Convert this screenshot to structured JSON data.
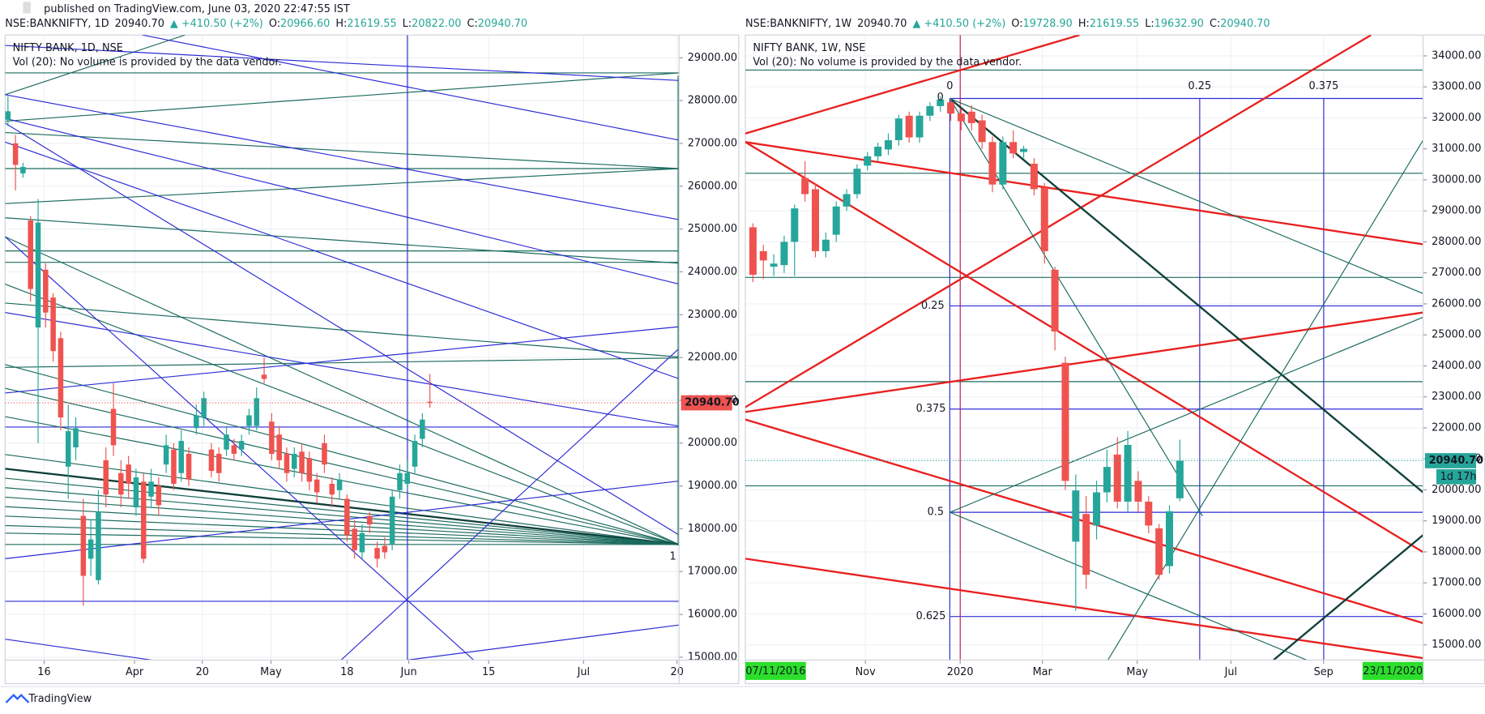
{
  "published": "published on TradingView.com, June 03, 2020 22:47:55 IST",
  "footer": "TradingView",
  "chart_data": [
    {
      "type": "candlestick",
      "header": [
        {
          "text": "NSE:BANKNIFTY, 1D",
          "color": "#131722"
        },
        {
          "text": "20940.70",
          "color": "#131722"
        },
        {
          "text": "▲ +410.50 (+2%)",
          "color": "#26a69a"
        },
        {
          "text": "O:",
          "color": "#131722"
        },
        {
          "text": "20966.60",
          "color": "#26a69a"
        },
        {
          "text": "H:",
          "color": "#131722"
        },
        {
          "text": "21619.55",
          "color": "#26a69a"
        },
        {
          "text": "L:",
          "color": "#131722"
        },
        {
          "text": "20822.00",
          "color": "#26a69a"
        },
        {
          "text": "C:",
          "color": "#131722"
        },
        {
          "text": "20940.70",
          "color": "#26a69a"
        }
      ],
      "title": "NIFTY BANK, 1D, NSE",
      "subtitle": "Vol (20): No volume is provided by the data vendor.",
      "up_color": "#26a69a",
      "down_color": "#ef5350",
      "open": [
        27550,
        27000,
        26300,
        25200,
        22700,
        24050,
        23400,
        22450,
        19450,
        19900,
        18300,
        17300,
        16800,
        19600,
        20800,
        19300,
        19500,
        18500,
        19100,
        18750,
        19000,
        19500,
        19850,
        19300,
        19750,
        20350,
        20600,
        19850,
        19750,
        19850,
        19950,
        19850,
        20400,
        20400,
        21600,
        20500,
        20200,
        19750,
        19400,
        19800,
        19650,
        19150,
        20000,
        19050,
        18900,
        18700,
        18000,
        17450,
        18300,
        17550,
        17600,
        17650,
        18900,
        19050,
        19450,
        20100,
        20966.6
      ],
      "high": [
        28100,
        27200,
        26550,
        25300,
        25700,
        24200,
        23500,
        22600,
        20900,
        20600,
        18700,
        18200,
        18900,
        19900,
        21400,
        19600,
        19700,
        19400,
        19300,
        19400,
        19200,
        20200,
        20000,
        20300,
        19900,
        20900,
        21200,
        20000,
        19900,
        20400,
        20100,
        20200,
        20800,
        21300,
        22000,
        20700,
        20400,
        19900,
        19900,
        20000,
        19800,
        19300,
        20200,
        19200,
        19300,
        18800,
        18200,
        18100,
        18400,
        17700,
        17800,
        18900,
        19500,
        19600,
        20200,
        20700,
        21619.55
      ],
      "low": [
        27400,
        25900,
        26200,
        23300,
        20000,
        22700,
        21900,
        20300,
        18700,
        19600,
        16200,
        16900,
        16700,
        18500,
        19700,
        18500,
        18700,
        18300,
        17200,
        18500,
        18300,
        19300,
        18900,
        19100,
        19000,
        20200,
        20400,
        19200,
        19100,
        19700,
        19600,
        19700,
        20200,
        20300,
        21400,
        19600,
        19400,
        19100,
        19200,
        19100,
        18900,
        18600,
        19300,
        18500,
        18700,
        17700,
        17300,
        17300,
        17900,
        17100,
        17300,
        17500,
        18700,
        18900,
        19300,
        19900,
        20822
      ],
      "close": [
        27750,
        26500,
        26450,
        23600,
        25150,
        23050,
        22150,
        20600,
        20280,
        20350,
        16900,
        17750,
        18400,
        18800,
        19950,
        18800,
        19050,
        19200,
        17300,
        19100,
        18550,
        19950,
        19050,
        20050,
        19150,
        20650,
        21050,
        19350,
        19300,
        20200,
        19750,
        20050,
        20650,
        21050,
        21500,
        19750,
        19600,
        19300,
        19750,
        19300,
        19100,
        18850,
        19500,
        18800,
        19150,
        17850,
        17500,
        17900,
        18100,
        17300,
        17450,
        18750,
        19300,
        19300,
        20050,
        20550,
        20940.7
      ],
      "xlim": [
        -0.38,
        89.07
      ],
      "xticks": [
        {
          "value": 4.8,
          "label": "16"
        },
        {
          "value": 16.8,
          "label": "Apr"
        },
        {
          "value": 25.8,
          "label": "20"
        },
        {
          "value": 34.9,
          "label": "May"
        },
        {
          "value": 45.0,
          "label": "18"
        },
        {
          "value": 53.2,
          "label": "Jun"
        },
        {
          "value": 63.8,
          "label": "15"
        },
        {
          "value": 76.4,
          "label": "Jul"
        },
        {
          "value": 88.8,
          "label": "20"
        }
      ],
      "ylim": [
        14934,
        29531
      ],
      "yticks": [
        {
          "value": 15000,
          "label": "15000.00"
        },
        {
          "value": 16000,
          "label": "16000.00"
        },
        {
          "value": 17000,
          "label": "17000.00"
        },
        {
          "value": 18000,
          "label": "18000.00"
        },
        {
          "value": 19000,
          "label": "19000.00"
        },
        {
          "value": 20000,
          "label": "20000.00"
        },
        {
          "value": 21000,
          "label": "21000.00"
        },
        {
          "value": 22000,
          "label": "22000.00"
        },
        {
          "value": 23000,
          "label": "23000.00"
        },
        {
          "value": 24000,
          "label": "24000.00"
        },
        {
          "value": 25000,
          "label": "25000.00"
        },
        {
          "value": 26000,
          "label": "26000.00"
        },
        {
          "value": 27000,
          "label": "27000.00"
        },
        {
          "value": 28000,
          "label": "28000.00"
        },
        {
          "value": 29000,
          "label": "29000.00"
        }
      ],
      "grid": true,
      "price_tag": "20940.70",
      "price_tag_color": "#ef5350",
      "marker_label": "1"
    },
    {
      "type": "candlestick",
      "header": [
        {
          "text": "NSE:BANKNIFTY, 1W",
          "color": "#131722"
        },
        {
          "text": "20940.70",
          "color": "#131722"
        },
        {
          "text": "▲ +410.50 (+2%)",
          "color": "#26a69a"
        },
        {
          "text": "O:",
          "color": "#131722"
        },
        {
          "text": "19728.90",
          "color": "#26a69a"
        },
        {
          "text": "H:",
          "color": "#131722"
        },
        {
          "text": "21619.55",
          "color": "#26a69a"
        },
        {
          "text": "L:",
          "color": "#131722"
        },
        {
          "text": "19632.90",
          "color": "#26a69a"
        },
        {
          "text": "C:",
          "color": "#131722"
        },
        {
          "text": "20940.70",
          "color": "#26a69a"
        }
      ],
      "title": "NIFTY BANK, 1W, NSE",
      "subtitle": "Vol (20): No volume is provided by the data vendor.",
      "up_color": "#26a69a",
      "down_color": "#ef5350",
      "open": [
        28470,
        27700,
        27200,
        27250,
        28000,
        30060,
        29700,
        27700,
        28230,
        29140,
        29540,
        30460,
        30760,
        30980,
        31280,
        32070,
        31370,
        32070,
        32380,
        32500,
        32140,
        32200,
        31920,
        31220,
        29850,
        31220,
        30900,
        30520,
        29750,
        27100,
        24100,
        18330,
        19220,
        18850,
        19920,
        21140,
        19620,
        20290,
        19620,
        18760,
        17540,
        19728.9
      ],
      "high": [
        28600,
        27900,
        27600,
        28200,
        29200,
        30600,
        29900,
        28300,
        29300,
        29700,
        30500,
        30900,
        31200,
        31500,
        32100,
        32200,
        32200,
        32500,
        32700,
        32613,
        32300,
        32400,
        32100,
        31400,
        31400,
        31600,
        31100,
        30700,
        29900,
        27200,
        24300,
        20500,
        19800,
        20300,
        21300,
        21700,
        21900,
        20600,
        19800,
        18900,
        19500,
        21619.55
      ],
      "low": [
        26700,
        26800,
        26900,
        27000,
        26900,
        29300,
        27500,
        27500,
        28000,
        29000,
        29400,
        30300,
        30600,
        30800,
        31100,
        31200,
        31200,
        31900,
        32200,
        31900,
        31600,
        31600,
        31000,
        29600,
        29700,
        30700,
        30700,
        29500,
        27300,
        24500,
        20000,
        16100,
        16800,
        18400,
        19600,
        19400,
        19300,
        19300,
        18600,
        17100,
        17300,
        19632.9
      ],
      "close": [
        26940,
        27400,
        27300,
        28000,
        29080,
        29540,
        27700,
        28070,
        29140,
        29540,
        30360,
        30760,
        31070,
        31280,
        31980,
        31370,
        32070,
        32380,
        32590,
        32140,
        31890,
        31830,
        31220,
        29850,
        31220,
        30850,
        31000,
        29700,
        27700,
        25110,
        20290,
        19980,
        17260,
        19920,
        20740,
        19620,
        21450,
        19620,
        18850,
        17260,
        19310,
        20940.7
      ],
      "xlim": [
        -0.73,
        64.36
      ],
      "xticks": [
        {
          "value": 10.8,
          "label": "Nov"
        },
        {
          "value": 19.9,
          "label": "2020"
        },
        {
          "value": 27.8,
          "label": "Mar"
        },
        {
          "value": 36.9,
          "label": "May"
        },
        {
          "value": 45.9,
          "label": "Jul"
        },
        {
          "value": 54.8,
          "label": "Sep"
        }
      ],
      "ylim": [
        14511,
        34672
      ],
      "yticks": [
        {
          "value": 15000,
          "label": "15000.00"
        },
        {
          "value": 16000,
          "label": "16000.00"
        },
        {
          "value": 17000,
          "label": "17000.00"
        },
        {
          "value": 18000,
          "label": "18000.00"
        },
        {
          "value": 19000,
          "label": "19000.00"
        },
        {
          "value": 20000,
          "label": "20000.00"
        },
        {
          "value": 21000,
          "label": "21000.00"
        },
        {
          "value": 22000,
          "label": "22000.00"
        },
        {
          "value": 23000,
          "label": "23000.00"
        },
        {
          "value": 24000,
          "label": "24000.00"
        },
        {
          "value": 25000,
          "label": "25000.00"
        },
        {
          "value": 26000,
          "label": "26000.00"
        },
        {
          "value": 27000,
          "label": "27000.00"
        },
        {
          "value": 28000,
          "label": "28000.00"
        },
        {
          "value": 29000,
          "label": "29000.00"
        },
        {
          "value": 30000,
          "label": "30000.00"
        },
        {
          "value": 31000,
          "label": "31000.00"
        },
        {
          "value": 32000,
          "label": "32000.00"
        },
        {
          "value": 33000,
          "label": "33000.00"
        },
        {
          "value": 34000,
          "label": "34000.00"
        }
      ],
      "grid": true,
      "price_tag": "20940.70",
      "price_tag_color": "#26a69a",
      "countdown": "1d 17h",
      "fib_labels": [
        "0",
        "0.25",
        "0.375",
        "0",
        "0.25",
        "0.375",
        "0.5",
        "0.625"
      ],
      "date_range": [
        "07/11/2016",
        "23/11/2020"
      ],
      "date_range_color": "#2bdf2b"
    }
  ]
}
